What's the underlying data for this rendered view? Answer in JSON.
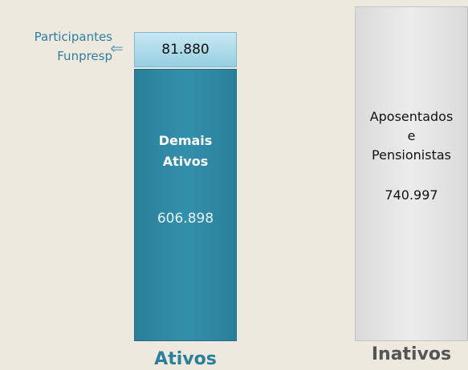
{
  "columns": [
    {
      "title": "Ativos",
      "segments": [
        {
          "lines": [
            "Participantes",
            "Funpresp"
          ],
          "value": "81.880"
        },
        {
          "lines": [
            "Demais",
            "Ativos"
          ],
          "value": "606.898"
        }
      ]
    },
    {
      "title": "Inativos",
      "segments": [
        {
          "lines": [
            "Aposentados",
            "e",
            "Pensionistas"
          ],
          "value": "740.997"
        }
      ]
    }
  ]
}
